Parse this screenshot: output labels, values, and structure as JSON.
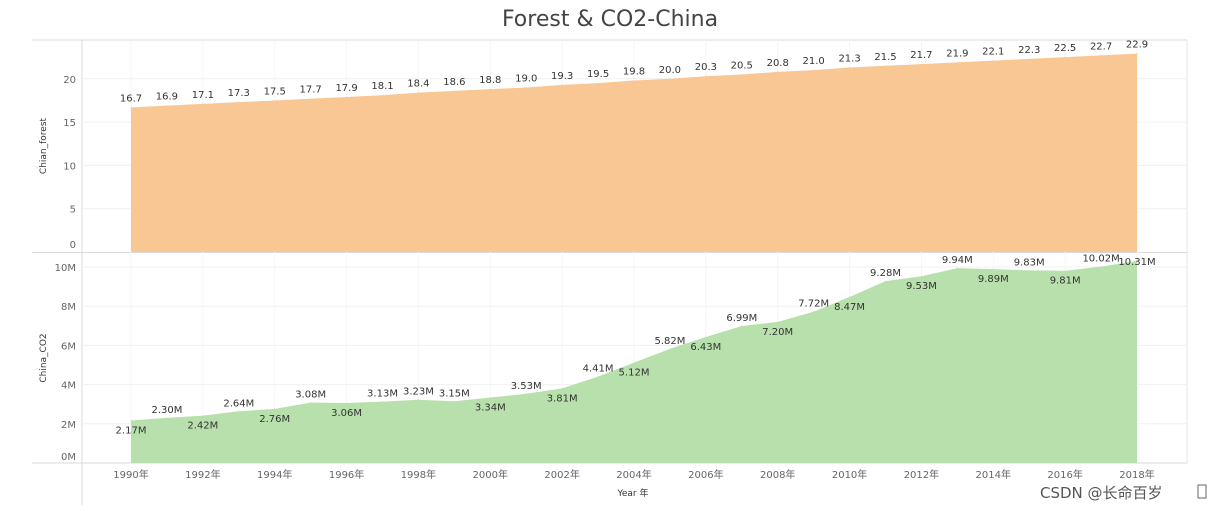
{
  "watermark": "CSDN @长命百岁",
  "chart_data": {
    "type": "area",
    "title": "Forest & CO2-China",
    "xlabel": "Year 年",
    "x": [
      1990,
      1991,
      1992,
      1993,
      1994,
      1995,
      1996,
      1997,
      1998,
      1999,
      2000,
      2001,
      2002,
      2003,
      2004,
      2005,
      2006,
      2007,
      2008,
      2009,
      2010,
      2011,
      2012,
      2013,
      2014,
      2015,
      2016,
      2017,
      2018
    ],
    "xticks": [
      "1990年",
      "1992年",
      "1994年",
      "1996年",
      "1998年",
      "2000年",
      "2002年",
      "2004年",
      "2006年",
      "2008年",
      "2010年",
      "2012年",
      "2014年",
      "2016年",
      "2018年"
    ],
    "grid": true,
    "panels": [
      {
        "ylabel": "Chian_forest",
        "ylim": [
          0,
          23.5
        ],
        "yticks": [
          "0",
          "5",
          "10",
          "15",
          "20"
        ],
        "color": "#f8c794",
        "values": [
          16.7,
          16.9,
          17.1,
          17.3,
          17.5,
          17.7,
          17.9,
          18.1,
          18.4,
          18.6,
          18.8,
          19.0,
          19.3,
          19.5,
          19.8,
          20.0,
          20.3,
          20.5,
          20.8,
          21.0,
          21.3,
          21.5,
          21.7,
          21.9,
          22.1,
          22.3,
          22.5,
          22.7,
          22.9
        ],
        "labels": [
          "16.7",
          "16.9",
          "17.1",
          "17.3",
          "17.5",
          "17.7",
          "17.9",
          "18.1",
          "18.4",
          "18.6",
          "18.8",
          "19.0",
          "19.3",
          "19.5",
          "19.8",
          "20.0",
          "20.3",
          "20.5",
          "20.8",
          "21.0",
          "21.3",
          "21.5",
          "21.7",
          "21.9",
          "22.1",
          "22.3",
          "22.5",
          "22.7",
          "22.9"
        ]
      },
      {
        "ylabel": "China_CO2",
        "ylim": [
          0,
          10500000
        ],
        "yticks": [
          "0M",
          "2M",
          "4M",
          "6M",
          "8M",
          "10M"
        ],
        "color": "#b8e0ac",
        "values": [
          2170000,
          2300000,
          2420000,
          2640000,
          2760000,
          3080000,
          3060000,
          3130000,
          3230000,
          3150000,
          3340000,
          3530000,
          3810000,
          4410000,
          5120000,
          5820000,
          6430000,
          6990000,
          7200000,
          7720000,
          8470000,
          9280000,
          9530000,
          9940000,
          9890000,
          9830000,
          9810000,
          10020000,
          10310000
        ],
        "labels": [
          "2.17M",
          "2.30M",
          "2.42M",
          "2.64M",
          "2.76M",
          "3.08M",
          "3.06M",
          "3.13M",
          "3.23M",
          "3.15M",
          "3.34M",
          "3.53M",
          "3.81M",
          "4.41M",
          "5.12M",
          "5.82M",
          "6.43M",
          "6.99M",
          "7.20M",
          "7.72M",
          "8.47M",
          "9.28M",
          "9.53M",
          "9.94M",
          "9.89M",
          "9.83M",
          "9.81M",
          "10.02M",
          "10.31M"
        ]
      }
    ]
  }
}
